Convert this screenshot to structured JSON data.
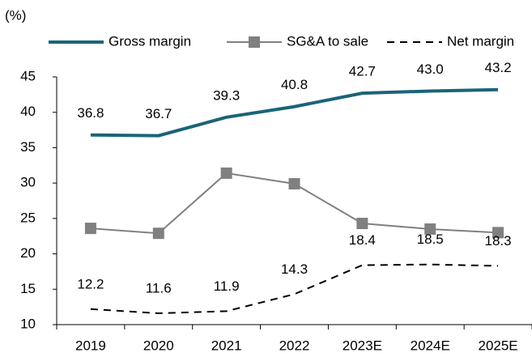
{
  "chart_data": {
    "type": "line",
    "y_label": "(%)",
    "categories": [
      "2019",
      "2020",
      "2021",
      "2022",
      "2023E",
      "2024E",
      "2025E"
    ],
    "series": [
      {
        "name": "Gross margin",
        "color": "#1b6478",
        "values": [
          36.8,
          36.7,
          39.3,
          40.8,
          42.7,
          43.0,
          43.2
        ],
        "value_labels": [
          "36.8",
          "36.7",
          "39.3",
          "40.8",
          "42.7",
          "43.0",
          "43.2"
        ]
      },
      {
        "name": "SG&A to sale",
        "color": "#808080",
        "values": [
          23.6,
          22.9,
          31.4,
          29.9,
          24.3,
          23.5,
          23.0
        ]
      },
      {
        "name": "Net margin",
        "color": "#000000",
        "values": [
          12.2,
          11.6,
          11.9,
          14.3,
          18.4,
          18.5,
          18.3
        ]
      }
    ],
    "ylim": [
      10,
      45
    ],
    "yticks": [
      10,
      15,
      20,
      25,
      30,
      35,
      40,
      45
    ],
    "grid": false
  }
}
